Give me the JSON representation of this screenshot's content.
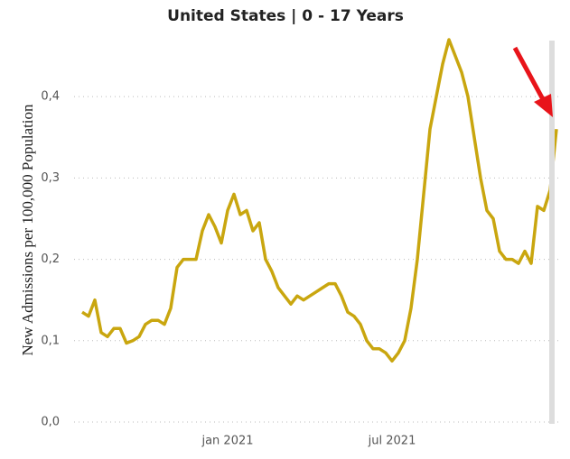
{
  "chart_data": {
    "type": "line",
    "title": "United States | 0 - 17 Years",
    "y_label": "New Admissions per 100,000 Population",
    "categories": [
      null,
      null,
      null,
      null,
      null,
      null,
      null,
      null,
      null,
      null,
      null,
      null,
      null,
      null,
      null,
      null,
      null,
      null,
      null,
      null,
      null,
      null,
      null,
      "jan 2021",
      null,
      null,
      null,
      null,
      null,
      null,
      null,
      null,
      null,
      null,
      null,
      null,
      null,
      null,
      null,
      null,
      null,
      null,
      null,
      null,
      null,
      null,
      null,
      null,
      null,
      "jul 2021",
      null,
      null,
      null,
      null,
      null,
      null,
      null,
      null,
      null,
      null,
      null,
      null,
      null,
      null,
      null,
      null,
      null,
      null,
      null,
      null,
      null,
      null,
      null,
      null,
      null,
      null
    ],
    "series": [
      {
        "name": "New Admissions",
        "color": "#c9a60f",
        "values": [
          0.135,
          0.13,
          0.15,
          0.11,
          0.105,
          0.115,
          0.115,
          0.097,
          0.1,
          0.105,
          0.12,
          0.125,
          0.125,
          0.12,
          0.14,
          0.19,
          0.2,
          0.2,
          0.2,
          0.235,
          0.255,
          0.24,
          0.22,
          0.26,
          0.28,
          0.255,
          0.26,
          0.235,
          0.245,
          0.2,
          0.185,
          0.165,
          0.155,
          0.145,
          0.155,
          0.15,
          0.155,
          0.16,
          0.165,
          0.17,
          0.17,
          0.155,
          0.135,
          0.13,
          0.12,
          0.1,
          0.09,
          0.09,
          0.085,
          0.075,
          0.085,
          0.1,
          0.14,
          0.2,
          0.28,
          0.36,
          0.4,
          0.44,
          0.47,
          0.45,
          0.43,
          0.4,
          0.35,
          0.3,
          0.26,
          0.25,
          0.21,
          0.2,
          0.2,
          0.195,
          0.21,
          0.195,
          0.265,
          0.26,
          0.285,
          0.36
        ]
      }
    ],
    "ylim": [
      0,
      0.47
    ],
    "yticks": [
      {
        "value": 0,
        "label": "0,0"
      },
      {
        "value": 0.1,
        "label": "0,1"
      },
      {
        "value": 0.2,
        "label": "0,2"
      },
      {
        "value": 0.3,
        "label": "0,3"
      },
      {
        "value": 0.4,
        "label": "0,4"
      }
    ],
    "grid": true
  }
}
